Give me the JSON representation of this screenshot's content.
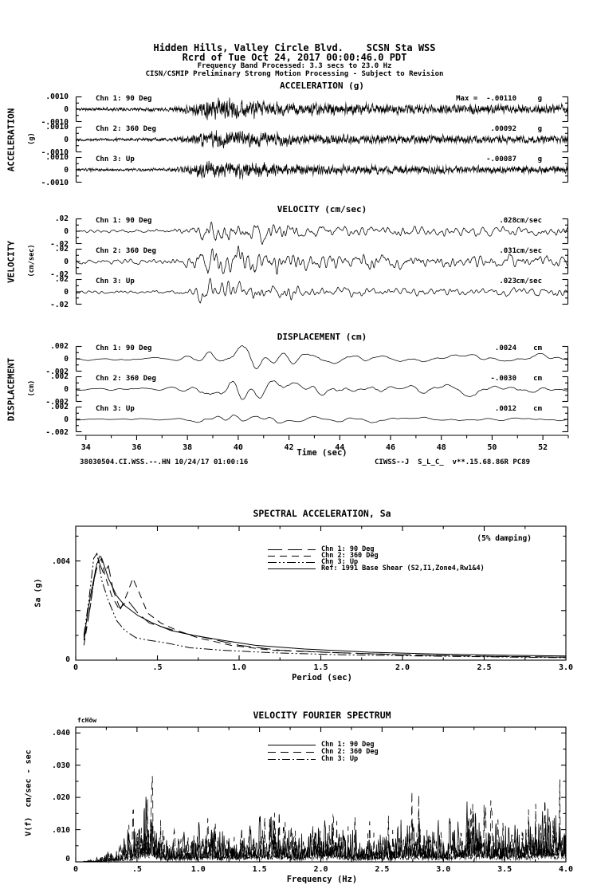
{
  "header": {
    "line1": "Hidden Hills, Valley Circle Blvd.    SCSN Sta WSS",
    "line2": "Rcrd of Tue Oct 24, 2017 00:00:46.0 PDT",
    "line3": "Frequency Band Processed: 3.3 secs to 23.0 Hz",
    "line4": "CISN/CSMIP Preliminary Strong Motion Processing - Subject to Revision"
  },
  "footer": {
    "left": "38030504.CI.WSS.--.HN 10/24/17 01:00:16",
    "right": "CIWSS--J  S_L_C_  v**.15.68.86R PC89"
  },
  "time_axis": {
    "label": "Time (sec)",
    "range": [
      33.6,
      53.0
    ],
    "ticks": [
      {
        "v": 34,
        "t": "34"
      },
      {
        "v": 36,
        "t": "36"
      },
      {
        "v": 38,
        "t": "38"
      },
      {
        "v": 40,
        "t": "40"
      },
      {
        "v": 42,
        "t": "42"
      },
      {
        "v": 44,
        "t": "44"
      },
      {
        "v": 46,
        "t": "46"
      },
      {
        "v": 48,
        "t": "48"
      },
      {
        "v": 50,
        "t": "50"
      },
      {
        "v": 52,
        "t": "52"
      }
    ],
    "minor_step": 1
  },
  "ts_envelope": [
    [
      0,
      0.16
    ],
    [
      0.19,
      0.18
    ],
    [
      0.23,
      0.42
    ],
    [
      0.26,
      1.0
    ],
    [
      0.33,
      0.95
    ],
    [
      0.42,
      0.65
    ],
    [
      0.5,
      0.52
    ],
    [
      0.65,
      0.45
    ],
    [
      0.8,
      0.42
    ],
    [
      1,
      0.4
    ]
  ],
  "chart_data": [
    {
      "type": "line",
      "id": "acceleration",
      "title": "ACCELERATION (g)",
      "side_label": "ACCELERATION",
      "side_unit": "(g)",
      "xlabel": "Time (sec)",
      "ylim": [
        -0.001,
        0.001
      ],
      "yticks": [
        ".0010",
        "0",
        "-.0010"
      ],
      "channels": [
        {
          "label": "Chn 1: 90 Deg",
          "peak_label": "Max =  -.00110",
          "unit": "g",
          "peak_value": -0.0011,
          "seed": 11,
          "rel_peak": 1.05
        },
        {
          "label": "Chn 2: 360 Deg",
          "peak_label": ".00092",
          "unit": "g",
          "peak_value": 0.00092,
          "seed": 22,
          "rel_peak": 0.92
        },
        {
          "label": "Chn 3: Up",
          "peak_label": "-.00087",
          "unit": "g",
          "peak_value": -0.00087,
          "seed": 33,
          "rel_peak": 0.87
        }
      ],
      "wave": {
        "n": 2400,
        "w": 1,
        "passes": 1
      }
    },
    {
      "type": "line",
      "id": "velocity",
      "title": "VELOCITY (cm/sec)",
      "side_label": "VELOCITY",
      "side_unit": "(cm/sec)",
      "xlabel": "Time (sec)",
      "ylim": [
        -0.02,
        0.02
      ],
      "yticks": [
        ".02",
        "0",
        "-.02"
      ],
      "channels": [
        {
          "label": "Chn 1: 90 Deg",
          "peak_label": ".028",
          "unit": "cm/sec",
          "peak_value": 0.028,
          "seed": 44,
          "rel_peak": 1.35
        },
        {
          "label": "Chn 2: 360 Deg",
          "peak_label": ".031",
          "unit": "cm/sec",
          "peak_value": 0.031,
          "seed": 55,
          "rel_peak": 1.5
        },
        {
          "label": "Chn 3: Up",
          "peak_label": ".023",
          "unit": "cm/sec",
          "peak_value": 0.023,
          "seed": 66,
          "rel_peak": 1.1
        }
      ],
      "wave": {
        "n": 1600,
        "w": 3,
        "passes": 2
      }
    },
    {
      "type": "line",
      "id": "displacement",
      "title": "DISPLACEMENT (cm)",
      "side_label": "DISPLACEMENT",
      "side_unit": "(cm)",
      "xlabel": "Time (sec)",
      "ylim": [
        -0.002,
        0.002
      ],
      "yticks": [
        ".002",
        "0",
        "-.002"
      ],
      "channels": [
        {
          "label": "Chn 1: 90 Deg",
          "peak_label": ".0024",
          "unit": "cm",
          "peak_value": 0.0024,
          "seed": 77,
          "rel_peak": 1.15
        },
        {
          "label": "Chn 2: 360 Deg",
          "peak_label": "-.0030",
          "unit": "cm",
          "peak_value": -0.003,
          "seed": 88,
          "rel_peak": 1.45
        },
        {
          "label": "Chn 3: Up",
          "peak_label": ".0012",
          "unit": "cm",
          "peak_value": 0.0012,
          "seed": 99,
          "rel_peak": 0.55
        }
      ],
      "wave": {
        "n": 1000,
        "w": 8,
        "passes": 2
      }
    },
    {
      "type": "line",
      "id": "spectral-acceleration",
      "title": "SPECTRAL ACCELERATION, Sa",
      "annotation": "(5% damping)",
      "xlabel": "Period (sec)",
      "ylabel": "Sa (g)",
      "xlim": [
        0,
        3.0
      ],
      "ylim": [
        0,
        0.0054
      ],
      "xticks": [
        {
          "v": 0,
          "t": "0"
        },
        {
          "v": 0.5,
          "t": ".5"
        },
        {
          "v": 1.0,
          "t": "1.0"
        },
        {
          "v": 1.5,
          "t": "1.5"
        },
        {
          "v": 2.0,
          "t": "2.0"
        },
        {
          "v": 2.5,
          "t": "2.5"
        },
        {
          "v": 3.0,
          "t": "3.0"
        }
      ],
      "yticks": [
        {
          "v": 0,
          "t": "0"
        },
        {
          "v": 0.004,
          "t": ".004"
        }
      ],
      "minor_x": 0.25,
      "minor_y": 0.001,
      "series": [
        {
          "name": "Chn 1: 90 Deg",
          "dash": [
            18,
            7
          ],
          "points": [
            [
              0.05,
              0.0008
            ],
            [
              0.08,
              0.0018
            ],
            [
              0.11,
              0.0032
            ],
            [
              0.14,
              0.004
            ],
            [
              0.17,
              0.0035
            ],
            [
              0.2,
              0.0038
            ],
            [
              0.23,
              0.0028
            ],
            [
              0.27,
              0.0021
            ],
            [
              0.32,
              0.0024
            ],
            [
              0.38,
              0.0019
            ],
            [
              0.45,
              0.0015
            ],
            [
              0.55,
              0.0013
            ],
            [
              0.65,
              0.0011
            ],
            [
              0.8,
              0.0009
            ],
            [
              1.0,
              0.0006
            ],
            [
              1.25,
              0.0004
            ],
            [
              1.6,
              0.0003
            ],
            [
              2.0,
              0.00022
            ],
            [
              2.5,
              0.00016
            ],
            [
              3.0,
              0.00012
            ]
          ]
        },
        {
          "name": "Chn 2: 360 Deg",
          "dash": [
            9,
            6
          ],
          "points": [
            [
              0.05,
              0.0006
            ],
            [
              0.09,
              0.0022
            ],
            [
              0.12,
              0.0036
            ],
            [
              0.15,
              0.0043
            ],
            [
              0.18,
              0.0034
            ],
            [
              0.22,
              0.0026
            ],
            [
              0.27,
              0.002
            ],
            [
              0.31,
              0.0026
            ],
            [
              0.35,
              0.0033
            ],
            [
              0.39,
              0.0027
            ],
            [
              0.44,
              0.0019
            ],
            [
              0.52,
              0.0015
            ],
            [
              0.62,
              0.0012
            ],
            [
              0.75,
              0.0009
            ],
            [
              0.95,
              0.0006
            ],
            [
              1.2,
              0.0004
            ],
            [
              1.6,
              0.0003
            ],
            [
              2.1,
              0.0002
            ],
            [
              2.6,
              0.00015
            ],
            [
              3.0,
              0.00012
            ]
          ]
        },
        {
          "name": "Chn 3: Up",
          "dash": [
            11,
            3,
            2,
            3,
            2,
            3
          ],
          "points": [
            [
              0.05,
              0.001
            ],
            [
              0.08,
              0.0024
            ],
            [
              0.11,
              0.0041
            ],
            [
              0.13,
              0.0043
            ],
            [
              0.16,
              0.0032
            ],
            [
              0.2,
              0.0024
            ],
            [
              0.25,
              0.0016
            ],
            [
              0.3,
              0.0012
            ],
            [
              0.37,
              0.0009
            ],
            [
              0.45,
              0.0008
            ],
            [
              0.55,
              0.0007
            ],
            [
              0.7,
              0.0005
            ],
            [
              0.9,
              0.0004
            ],
            [
              1.2,
              0.0003
            ],
            [
              1.6,
              0.00022
            ],
            [
              2.1,
              0.00017
            ],
            [
              2.6,
              0.00013
            ],
            [
              3.0,
              0.0001
            ]
          ]
        },
        {
          "name": "Ref: 1991 Base Shear (S2,I1,Zone4,Rw1&4)",
          "dash": [],
          "points": [
            [
              0.05,
              0.0009
            ],
            [
              0.09,
              0.0026
            ],
            [
              0.13,
              0.0039
            ],
            [
              0.16,
              0.0041
            ],
            [
              0.2,
              0.0033
            ],
            [
              0.25,
              0.0026
            ],
            [
              0.3,
              0.0022
            ],
            [
              0.38,
              0.0018
            ],
            [
              0.47,
              0.0015
            ],
            [
              0.58,
              0.0012
            ],
            [
              0.72,
              0.001
            ],
            [
              0.9,
              0.0008
            ],
            [
              1.1,
              0.0006
            ],
            [
              1.4,
              0.00045
            ],
            [
              1.8,
              0.00032
            ],
            [
              2.2,
              0.00025
            ],
            [
              2.6,
              0.0002
            ],
            [
              3.0,
              0.00017
            ]
          ]
        }
      ]
    },
    {
      "type": "line",
      "id": "velocity-fourier-spectrum",
      "title": "VELOCITY FOURIER SPECTRUM",
      "corner_label": "fcHöw",
      "xlabel": "Frequency (Hz)",
      "ylabel": "V(f)  cm/sec - sec",
      "xlim": [
        0,
        4.0
      ],
      "ylim": [
        0,
        0.0418
      ],
      "xticks": [
        {
          "v": 0,
          "t": "0"
        },
        {
          "v": 0.5,
          "t": ".5"
        },
        {
          "v": 1.0,
          "t": "1.0"
        },
        {
          "v": 1.5,
          "t": "1.5"
        },
        {
          "v": 2.0,
          "t": "2.0"
        },
        {
          "v": 2.5,
          "t": "2.5"
        },
        {
          "v": 3.0,
          "t": "3.0"
        },
        {
          "v": 3.5,
          "t": "3.5"
        },
        {
          "v": 4.0,
          "t": "4.0"
        }
      ],
      "yticks": [
        {
          "v": 0.04,
          "t": ".040"
        },
        {
          "v": 0.03,
          "t": ".030"
        },
        {
          "v": 0.02,
          "t": ".020"
        },
        {
          "v": 0.01,
          "t": ".010"
        },
        {
          "v": 0,
          "t": "0"
        }
      ],
      "minor_x": 0.25,
      "minor_y": 0.005,
      "envelope": [
        [
          0,
          0
        ],
        [
          0.15,
          0.001
        ],
        [
          0.3,
          0.006
        ],
        [
          0.45,
          0.013
        ],
        [
          0.55,
          0.03
        ],
        [
          0.62,
          0.033
        ],
        [
          0.7,
          0.015
        ],
        [
          0.9,
          0.013
        ],
        [
          1.1,
          0.016
        ],
        [
          1.35,
          0.014
        ],
        [
          1.6,
          0.024
        ],
        [
          1.8,
          0.014
        ],
        [
          2.05,
          0.026
        ],
        [
          2.3,
          0.013
        ],
        [
          2.55,
          0.016
        ],
        [
          2.8,
          0.024
        ],
        [
          3.0,
          0.014
        ],
        [
          3.25,
          0.028
        ],
        [
          3.5,
          0.015
        ],
        [
          3.75,
          0.026
        ],
        [
          3.95,
          0.028
        ],
        [
          4.0,
          0.02
        ]
      ],
      "points": 1300,
      "series": [
        {
          "name": "Chn 1: 90 Deg",
          "dash": [],
          "seed": 101,
          "scale": 0.85
        },
        {
          "name": "Chn 2: 360 Deg",
          "dash": [
            10,
            6
          ],
          "seed": 202,
          "scale": 1.0
        },
        {
          "name": "Chn 3: Up",
          "dash": [
            10,
            3,
            2,
            3
          ],
          "seed": 303,
          "scale": 0.5
        }
      ]
    }
  ]
}
